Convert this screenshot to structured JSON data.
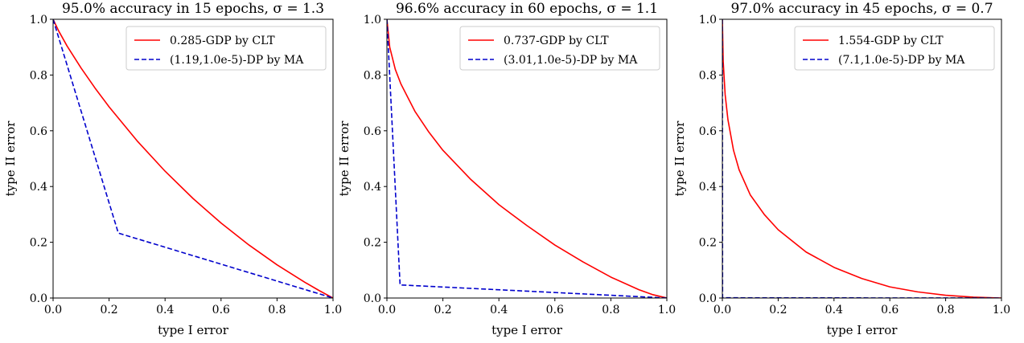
{
  "chart_data": [
    {
      "type": "line",
      "title": "95.0% accuracy in 15 epochs, σ = 1.3",
      "xlabel": "type I error",
      "ylabel": "type II error",
      "xlim": [
        0,
        1
      ],
      "ylim": [
        0,
        1
      ],
      "xticks": [
        "0.0",
        "0.2",
        "0.4",
        "0.6",
        "0.8",
        "1.0"
      ],
      "yticks": [
        "0.0",
        "0.2",
        "0.4",
        "0.6",
        "0.8",
        "1.0"
      ],
      "grid": false,
      "legend_position": "top-right",
      "series": [
        {
          "name": "0.285-GDP by CLT",
          "color": "#ff0000",
          "style": "solid",
          "x": [
            0,
            0.02,
            0.05,
            0.1,
            0.15,
            0.2,
            0.3,
            0.4,
            0.5,
            0.6,
            0.7,
            0.8,
            0.9,
            0.95,
            1.0
          ],
          "y": [
            1.0,
            0.958,
            0.904,
            0.825,
            0.753,
            0.686,
            0.564,
            0.455,
            0.357,
            0.269,
            0.19,
            0.119,
            0.056,
            0.027,
            0.0
          ]
        },
        {
          "name": "(1.19,1.0e-5)-DP by MA",
          "color": "#0000cc",
          "style": "dashed",
          "x": [
            0,
            0.233,
            1.0
          ],
          "y": [
            1.0,
            0.233,
            0.0
          ]
        }
      ]
    },
    {
      "type": "line",
      "title": "96.6% accuracy in 60 epochs, σ = 1.1",
      "xlabel": "type I error",
      "ylabel": "type II error",
      "xlim": [
        0,
        1
      ],
      "ylim": [
        0,
        1
      ],
      "xticks": [
        "0.0",
        "0.2",
        "0.4",
        "0.6",
        "0.8",
        "1.0"
      ],
      "yticks": [
        "0.0",
        "0.2",
        "0.4",
        "0.6",
        "0.8",
        "1.0"
      ],
      "grid": false,
      "legend_position": "top-right",
      "series": [
        {
          "name": "0.737-GDP by CLT",
          "color": "#ff0000",
          "style": "solid",
          "x": [
            0,
            0.01,
            0.03,
            0.05,
            0.1,
            0.15,
            0.2,
            0.3,
            0.4,
            0.5,
            0.6,
            0.7,
            0.8,
            0.9,
            0.95,
            1.0
          ],
          "y": [
            1.0,
            0.9,
            0.82,
            0.768,
            0.67,
            0.595,
            0.53,
            0.425,
            0.335,
            0.26,
            0.19,
            0.13,
            0.075,
            0.03,
            0.012,
            0.0
          ]
        },
        {
          "name": "(3.01,1.0e-5)-DP by MA",
          "color": "#0000cc",
          "style": "dashed",
          "x": [
            0,
            0.047,
            1.0
          ],
          "y": [
            1.0,
            0.047,
            0.0
          ]
        }
      ]
    },
    {
      "type": "line",
      "title": "97.0% accuracy in 45 epochs, σ = 0.7",
      "xlabel": "type I error",
      "ylabel": "type II error",
      "xlim": [
        0,
        1
      ],
      "ylim": [
        0,
        1
      ],
      "xticks": [
        "0.0",
        "0.2",
        "0.4",
        "0.6",
        "0.8",
        "1.0"
      ],
      "yticks": [
        "0.0",
        "0.2",
        "0.4",
        "0.6",
        "0.8",
        "1.0"
      ],
      "grid": false,
      "legend_position": "top-right",
      "series": [
        {
          "name": "1.554-GDP by CLT",
          "color": "#ff0000",
          "style": "solid",
          "x": [
            0,
            0.003,
            0.01,
            0.02,
            0.04,
            0.06,
            0.1,
            0.15,
            0.2,
            0.3,
            0.4,
            0.5,
            0.6,
            0.7,
            0.8,
            0.9,
            1.0
          ],
          "y": [
            1.0,
            0.85,
            0.73,
            0.64,
            0.53,
            0.46,
            0.37,
            0.3,
            0.245,
            0.165,
            0.11,
            0.07,
            0.04,
            0.022,
            0.01,
            0.003,
            0.0
          ]
        },
        {
          "name": "(7.1,1.0e-5)-DP by MA",
          "color": "#0000cc",
          "style": "dashed",
          "x": [
            0,
            0.0008,
            1.0
          ],
          "y": [
            1.0,
            0.0008,
            0.0
          ]
        }
      ]
    }
  ]
}
